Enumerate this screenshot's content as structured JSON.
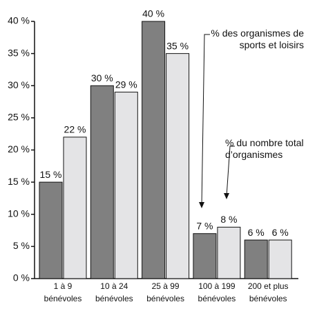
{
  "chart_data": {
    "type": "bar",
    "categories": [
      [
        "1 à 9",
        "bénévoles"
      ],
      [
        "10 à 24",
        "bénévoles"
      ],
      [
        "25 à 99",
        "bénévoles"
      ],
      [
        "100 à 199",
        "bénévoles"
      ],
      [
        "200 et plus",
        "bénévoles"
      ]
    ],
    "series": [
      {
        "name": "% des organismes de sports et loisirs",
        "color": "#808080",
        "values": [
          15,
          30,
          40,
          7,
          6
        ],
        "value_labels": [
          "15 %",
          "30 %",
          "40 %",
          "7 %",
          "6 %"
        ]
      },
      {
        "name": "% du nombre total d’organismes",
        "color": "#e4e4e6",
        "values": [
          22,
          29,
          35,
          8,
          6
        ],
        "value_labels": [
          "22 %",
          "29 %",
          "35 %",
          "8 %",
          "6 %"
        ]
      }
    ],
    "ylim": [
      0,
      40
    ],
    "yticks": [
      {
        "value": 0,
        "label": "0 %"
      },
      {
        "value": 5,
        "label": "5 %"
      },
      {
        "value": 10,
        "label": "10 %"
      },
      {
        "value": 15,
        "label": "15 %"
      },
      {
        "value": 20,
        "label": "20 %"
      },
      {
        "value": 25,
        "label": "25 %"
      },
      {
        "value": 30,
        "label": "30 %"
      },
      {
        "value": 35,
        "label": "35 %"
      },
      {
        "value": 40,
        "label": "40 %"
      }
    ]
  }
}
